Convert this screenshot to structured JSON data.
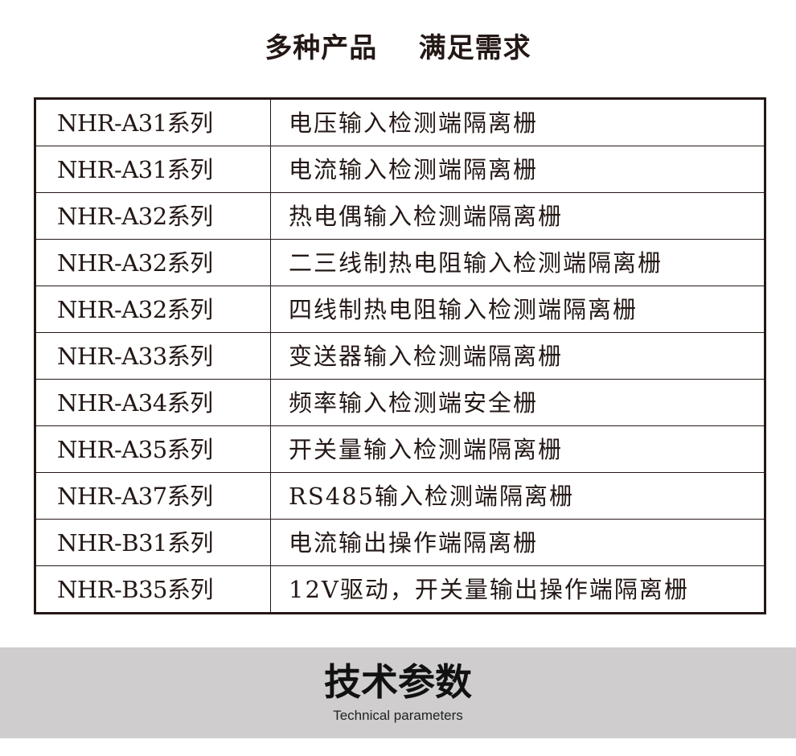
{
  "title": "多种产品    满足需求",
  "rows": [
    {
      "model": "NHR-A31系列",
      "desc": "电压输入检测端隔离栅"
    },
    {
      "model": "NHR-A31系列",
      "desc": "电流输入检测端隔离栅"
    },
    {
      "model": "NHR-A32系列",
      "desc": "热电偶输入检测端隔离栅"
    },
    {
      "model": "NHR-A32系列",
      "desc": "二三线制热电阻输入检测端隔离栅"
    },
    {
      "model": "NHR-A32系列",
      "desc": "四线制热电阻输入检测端隔离栅"
    },
    {
      "model": "NHR-A33系列",
      "desc": "变送器输入检测端隔离栅"
    },
    {
      "model": "NHR-A34系列",
      "desc": "频率输入检测端安全栅"
    },
    {
      "model": "NHR-A35系列",
      "desc": "开关量输入检测端隔离栅"
    },
    {
      "model": "NHR-A37系列",
      "desc": "RS485输入检测端隔离栅"
    },
    {
      "model": "NHR-B31系列",
      "desc": "电流输出操作端隔离栅"
    },
    {
      "model": "NHR-B35系列",
      "desc": "12V驱动，开关量输出操作端隔离栅"
    }
  ],
  "banner": {
    "heading": "技术参数",
    "subheading": "Technical parameters"
  }
}
